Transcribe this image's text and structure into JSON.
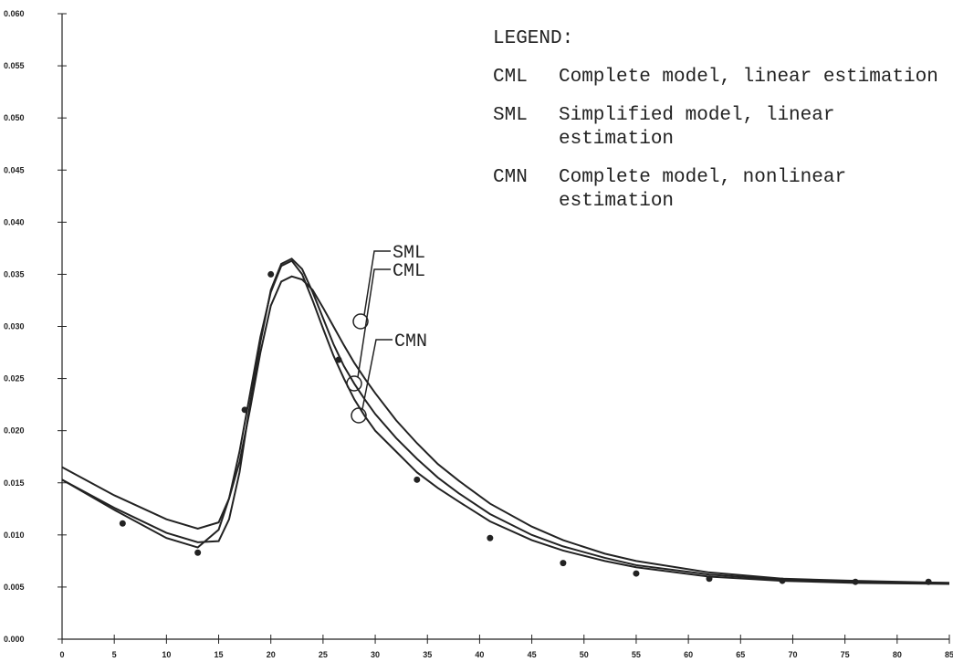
{
  "chart_data": {
    "type": "line",
    "x": [
      0,
      5,
      10,
      13,
      15,
      16,
      17,
      18,
      19,
      20,
      21,
      22,
      23,
      24,
      25,
      26,
      27,
      28,
      29,
      30,
      32,
      34,
      36,
      38,
      41,
      45,
      48,
      52,
      55,
      62,
      69,
      76,
      85
    ],
    "series": [
      {
        "name": "CML",
        "description": "Complete model, linear estimation",
        "color": "#222222",
        "values": [
          0.0153,
          0.0126,
          0.0102,
          0.0093,
          0.0094,
          0.0115,
          0.016,
          0.0225,
          0.0285,
          0.0335,
          0.036,
          0.0365,
          0.0355,
          0.0333,
          0.0308,
          0.0283,
          0.0262,
          0.0245,
          0.023,
          0.0216,
          0.0193,
          0.0173,
          0.0155,
          0.014,
          0.012,
          0.01,
          0.0089,
          0.0078,
          0.0071,
          0.0062,
          0.0057,
          0.0055,
          0.0054
        ]
      },
      {
        "name": "SML",
        "description": "Simplified model, linear estimation",
        "color": "#222222",
        "values": [
          0.0165,
          0.0138,
          0.0115,
          0.0106,
          0.0112,
          0.0135,
          0.017,
          0.022,
          0.0275,
          0.032,
          0.0343,
          0.0348,
          0.0345,
          0.0335,
          0.0318,
          0.03,
          0.0282,
          0.0265,
          0.025,
          0.0236,
          0.021,
          0.0188,
          0.0168,
          0.0152,
          0.013,
          0.0108,
          0.0095,
          0.0082,
          0.0075,
          0.0064,
          0.0058,
          0.0056,
          0.0054
        ]
      },
      {
        "name": "CMN",
        "description": "Complete model, nonlinear estimation",
        "color": "#222222",
        "values": [
          0.0153,
          0.0124,
          0.0097,
          0.0088,
          0.0105,
          0.0135,
          0.018,
          0.0235,
          0.029,
          0.0333,
          0.0358,
          0.0363,
          0.035,
          0.0325,
          0.0298,
          0.0272,
          0.025,
          0.023,
          0.0214,
          0.02,
          0.018,
          0.016,
          0.0145,
          0.0132,
          0.0113,
          0.0095,
          0.0085,
          0.0075,
          0.0069,
          0.006,
          0.0056,
          0.0054,
          0.0053
        ]
      }
    ],
    "points": {
      "x": [
        5.8,
        13,
        17.5,
        20,
        26.5,
        34,
        41,
        48,
        55,
        62,
        69,
        76,
        83
      ],
      "y": [
        0.0111,
        0.0083,
        0.022,
        0.035,
        0.0268,
        0.0153,
        0.0097,
        0.0073,
        0.0063,
        0.0058,
        0.0056,
        0.0055,
        0.0055
      ]
    },
    "legend_title": "LEGEND:",
    "xlim": [
      0,
      85
    ],
    "xticks": [
      0,
      5,
      10,
      15,
      20,
      25,
      30,
      35,
      40,
      45,
      50,
      55,
      60,
      65,
      70,
      75,
      80,
      85
    ],
    "ylim": [
      0,
      0.06
    ],
    "yticks": [
      {
        "value": 0,
        "label": "0.000"
      },
      0.005,
      {
        "value": 0.01,
        "label": "0.010"
      },
      0.015,
      {
        "value": 0.02,
        "label": "0.020"
      },
      0.025,
      {
        "value": 0.03,
        "label": "0.030"
      },
      0.035,
      {
        "value": 0.04,
        "label": "0.040"
      },
      0.045,
      {
        "value": 0.05,
        "label": "0.050"
      },
      0.055,
      {
        "value": 0.06,
        "label": "0.060"
      }
    ]
  }
}
